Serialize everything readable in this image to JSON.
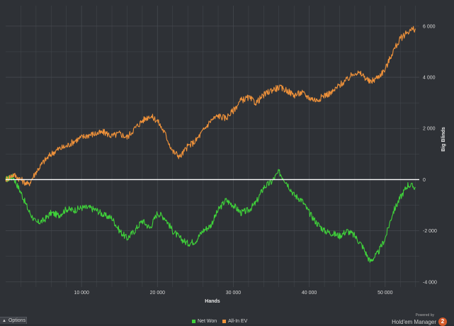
{
  "chart_data": {
    "type": "line",
    "title": "",
    "xlabel": "Hands",
    "ylabel": "Big Blinds",
    "xlim": [
      0,
      54500
    ],
    "ylim": [
      -4200,
      6800
    ],
    "x_ticks": [
      10000,
      20000,
      30000,
      40000,
      50000
    ],
    "x_tick_labels": [
      "10 000",
      "20 000",
      "30 000",
      "40 000",
      "50 000"
    ],
    "y_ticks": [
      6000,
      4000,
      2000,
      0,
      -2000,
      -4000
    ],
    "y_tick_labels": [
      "6 000",
      "4 000",
      "2 000",
      "0",
      "-2 000",
      "-4 000"
    ],
    "y_axis_side": "right",
    "grid": true,
    "legend_position": "bottom-center",
    "background": "#2e3136",
    "grid_color": "#44484e",
    "zero_line_color": "#ffffff",
    "series": [
      {
        "name": "Net Won",
        "color": "#3fd13a",
        "x": [
          0,
          1000,
          2000,
          3000,
          4000,
          5000,
          6000,
          7000,
          8000,
          9000,
          10000,
          11000,
          12000,
          13000,
          14000,
          15000,
          16000,
          17000,
          18000,
          19000,
          20000,
          21000,
          22000,
          23000,
          24000,
          25000,
          26000,
          27000,
          28000,
          29000,
          30000,
          31000,
          32000,
          33000,
          34000,
          35000,
          36000,
          37000,
          38000,
          39000,
          40000,
          41000,
          42000,
          43000,
          44000,
          45000,
          46000,
          47000,
          48000,
          49000,
          50000,
          51000,
          52000,
          53000,
          54000
        ],
        "y": [
          0,
          100,
          -500,
          -1200,
          -1700,
          -1600,
          -1300,
          -1400,
          -1150,
          -1200,
          -1100,
          -1100,
          -1200,
          -1400,
          -1500,
          -2000,
          -2300,
          -2000,
          -1600,
          -1900,
          -1300,
          -1500,
          -2000,
          -2300,
          -2500,
          -2400,
          -2000,
          -1800,
          -1200,
          -800,
          -1000,
          -1300,
          -1200,
          -900,
          -300,
          -100,
          300,
          -100,
          -600,
          -800,
          -1300,
          -1700,
          -2000,
          -2100,
          -2200,
          -2000,
          -2200,
          -2600,
          -3200,
          -2900,
          -2300,
          -1300,
          -700,
          -200,
          -300
        ]
      },
      {
        "name": "All-In EV",
        "color": "#f0923a",
        "x": [
          0,
          1000,
          2000,
          3000,
          4000,
          5000,
          6000,
          7000,
          8000,
          9000,
          10000,
          11000,
          12000,
          13000,
          14000,
          15000,
          16000,
          17000,
          18000,
          19000,
          20000,
          21000,
          22000,
          23000,
          24000,
          25000,
          26000,
          27000,
          28000,
          29000,
          30000,
          31000,
          32000,
          33000,
          34000,
          35000,
          36000,
          37000,
          38000,
          39000,
          40000,
          41000,
          42000,
          43000,
          44000,
          45000,
          46000,
          47000,
          48000,
          49000,
          50000,
          51000,
          52000,
          53000,
          54000
        ],
        "y": [
          0,
          200,
          0,
          -200,
          300,
          700,
          1000,
          1200,
          1300,
          1500,
          1650,
          1750,
          1800,
          1850,
          1700,
          1800,
          1650,
          2000,
          2300,
          2500,
          2300,
          1800,
          1100,
          900,
          1300,
          1500,
          1900,
          2300,
          2500,
          2400,
          2700,
          3100,
          3200,
          3000,
          3300,
          3500,
          3600,
          3500,
          3300,
          3400,
          3200,
          3100,
          3300,
          3400,
          3700,
          3900,
          4200,
          4100,
          3800,
          4000,
          4300,
          5000,
          5500,
          5800,
          5900
        ]
      }
    ]
  },
  "legend": {
    "items": [
      {
        "label": "Net Won",
        "color": "#3fd13a"
      },
      {
        "label": "All-In EV",
        "color": "#f0923a"
      }
    ]
  },
  "options": {
    "label": "Options",
    "caret_icon": "caret-up-icon"
  },
  "brand": {
    "powered": "Powered by",
    "name": "Hold'em Manager",
    "logo_text": "2"
  }
}
